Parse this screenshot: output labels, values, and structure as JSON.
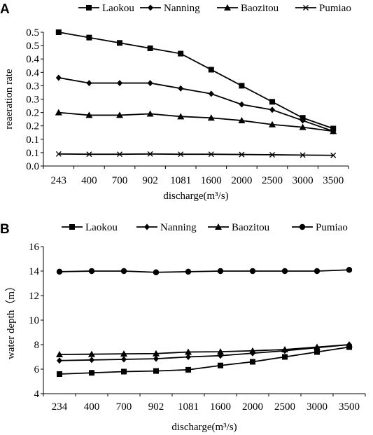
{
  "chart_data": [
    {
      "panel": "A",
      "type": "line",
      "xlabel": "discharge(m³/s)",
      "ylabel": "reaeration rate",
      "ylim": [
        0,
        0.5
      ],
      "yticks": [
        "0.0",
        "0.1",
        "0.1",
        "0.2",
        "0.2",
        "0.3",
        "0.3",
        "0.4",
        "0.4",
        "0.5",
        "0.5"
      ],
      "categories": [
        "243",
        "400",
        "700",
        "902",
        "1081",
        "1600",
        "2000",
        "2500",
        "3000",
        "3500"
      ],
      "legend_position": "top",
      "grid": false,
      "series": [
        {
          "name": "Laokou",
          "marker": "square",
          "values": [
            0.5,
            0.48,
            0.46,
            0.44,
            0.42,
            0.36,
            0.3,
            0.24,
            0.18,
            0.14
          ]
        },
        {
          "name": "Nanning",
          "marker": "diamond",
          "values": [
            0.33,
            0.31,
            0.31,
            0.31,
            0.29,
            0.27,
            0.23,
            0.21,
            0.17,
            0.13
          ]
        },
        {
          "name": "Baozitou",
          "marker": "triangle",
          "values": [
            0.2,
            0.19,
            0.19,
            0.195,
            0.185,
            0.18,
            0.17,
            0.155,
            0.145,
            0.13
          ]
        },
        {
          "name": "Pumiao",
          "marker": "x",
          "values": [
            0.045,
            0.044,
            0.044,
            0.045,
            0.044,
            0.044,
            0.043,
            0.042,
            0.041,
            0.04
          ]
        }
      ]
    },
    {
      "panel": "B",
      "type": "line",
      "xlabel": "discharge(m³/s)",
      "ylabel": "water depth（m）",
      "ylim": [
        4,
        16
      ],
      "yticks": [
        "4",
        "6",
        "8",
        "10",
        "12",
        "14",
        "16"
      ],
      "categories": [
        "234",
        "400",
        "700",
        "902",
        "1081",
        "1600",
        "2000",
        "2500",
        "3000",
        "3500"
      ],
      "legend_position": "top",
      "grid": false,
      "series": [
        {
          "name": "Laokou",
          "marker": "square",
          "values": [
            5.6,
            5.7,
            5.8,
            5.85,
            5.95,
            6.3,
            6.6,
            7.0,
            7.4,
            7.8
          ]
        },
        {
          "name": "Nanning",
          "marker": "diamond",
          "values": [
            6.7,
            6.75,
            6.8,
            6.85,
            7.0,
            7.1,
            7.3,
            7.5,
            7.75,
            8.0
          ]
        },
        {
          "name": "Baozitou",
          "marker": "triangle",
          "values": [
            7.2,
            7.22,
            7.25,
            7.27,
            7.4,
            7.42,
            7.5,
            7.6,
            7.8,
            8.0
          ]
        },
        {
          "name": "Pumiao",
          "marker": "circle",
          "values": [
            13.95,
            14.0,
            14.0,
            13.9,
            13.95,
            14.0,
            14.0,
            14.0,
            14.0,
            14.1
          ]
        }
      ]
    }
  ]
}
